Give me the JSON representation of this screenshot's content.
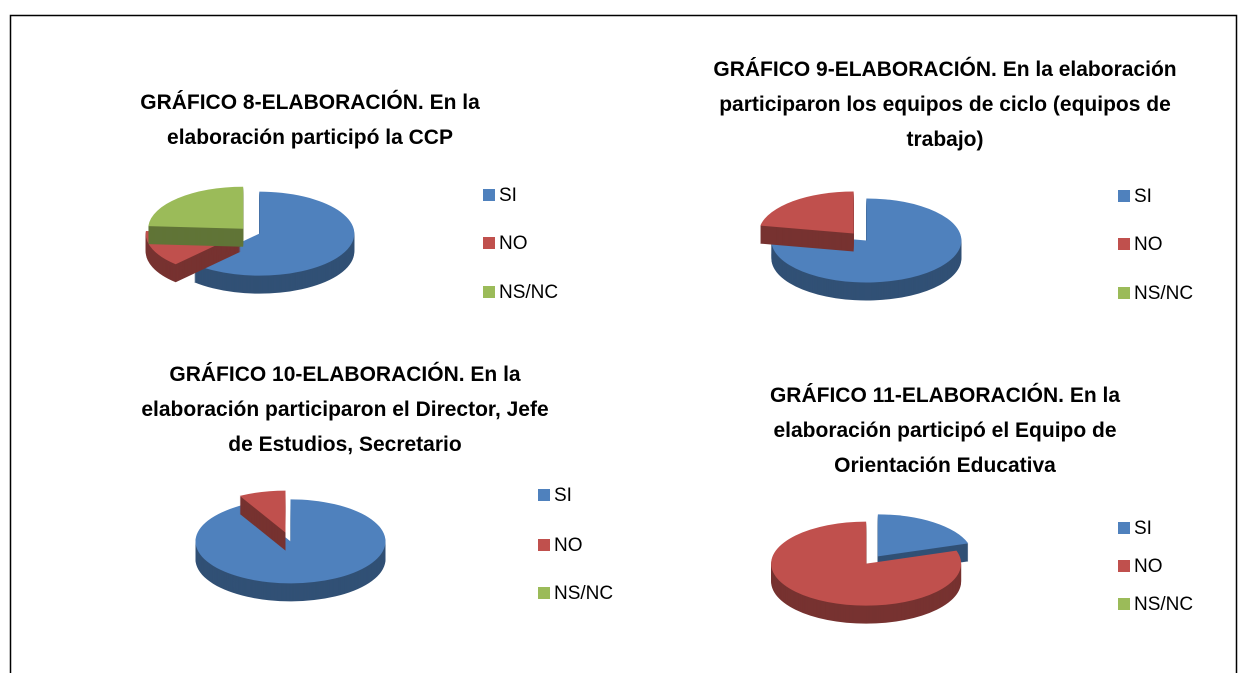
{
  "chart_data": [
    {
      "type": "pie",
      "title": "GRÁFICO 8-ELABORACIÓN. En la elaboración participó la CCP",
      "categories": [
        "SI",
        "NO",
        "NS/NC"
      ],
      "values": [
        62,
        14,
        24
      ],
      "colors": [
        "#4f81bd",
        "#c0504d",
        "#9bbb59"
      ]
    },
    {
      "type": "pie",
      "title": "GRÁFICO 9-ELABORACIÓN. En la elaboración participaron los equipos de ciclo (equipos de trabajo)",
      "categories": [
        "SI",
        "NO",
        "NS/NC"
      ],
      "values": [
        78,
        22,
        0
      ],
      "colors": [
        "#4f81bd",
        "#c0504d",
        "#9bbb59"
      ]
    },
    {
      "type": "pie",
      "title": "GRÁFICO 10-ELABORACIÓN. En la elaboración participaron el Director, Jefe de Estudios, Secretario",
      "categories": [
        "SI",
        "NO",
        "NS/NC"
      ],
      "values": [
        92,
        8,
        0
      ],
      "colors": [
        "#4f81bd",
        "#c0504d",
        "#9bbb59"
      ]
    },
    {
      "type": "pie",
      "title": "GRÁFICO 11-ELABORACIÓN. En la elaboración participó el Equipo de Orientación Educativa",
      "categories": [
        "SI",
        "NO",
        "NS/NC"
      ],
      "values": [
        20,
        80,
        0
      ],
      "colors": [
        "#4f81bd",
        "#c0504d",
        "#9bbb59"
      ]
    }
  ]
}
